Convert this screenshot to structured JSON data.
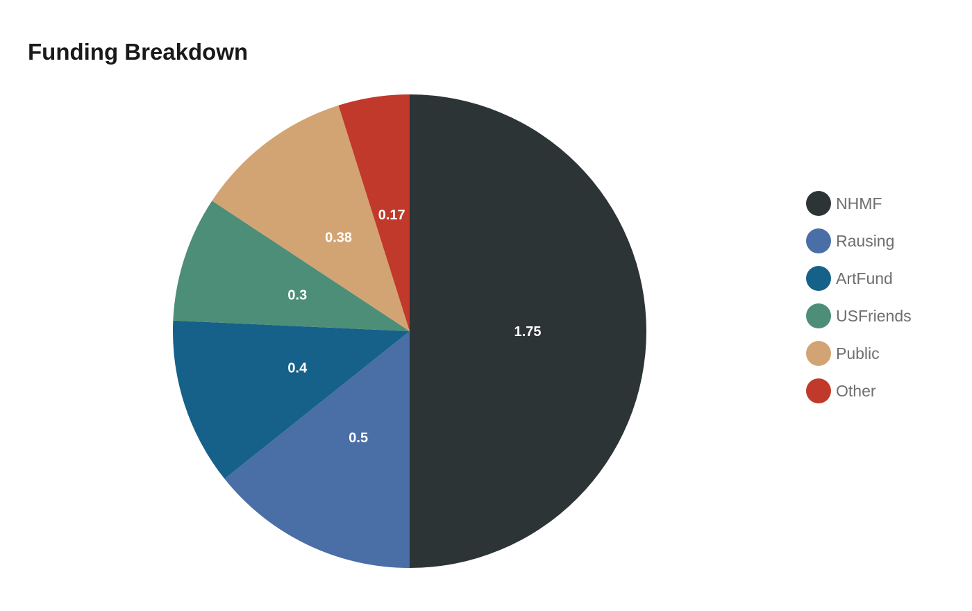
{
  "chart_data": {
    "type": "pie",
    "title": "Funding Breakdown",
    "categories": [
      "NHMF",
      "Rausing",
      "ArtFund",
      "USFriends",
      "Public",
      "Other"
    ],
    "values": [
      1.75,
      0.5,
      0.4,
      0.3,
      0.38,
      0.17
    ],
    "value_labels": [
      "1.75",
      "0.5",
      "0.4",
      "0.3",
      "0.38",
      "0.17"
    ],
    "colors": [
      "#2d3436",
      "#4a6ea6",
      "#166189",
      "#4d8e78",
      "#d3a473",
      "#c1392a"
    ],
    "total": 3.5,
    "start_angle": "12-oclock",
    "direction": "clockwise",
    "legend_position": "right",
    "value_label_color": "#ffffff",
    "legend_text_color": "#6e6e6e",
    "title_color": "#1a1a1a",
    "background_color": "#ffffff"
  }
}
